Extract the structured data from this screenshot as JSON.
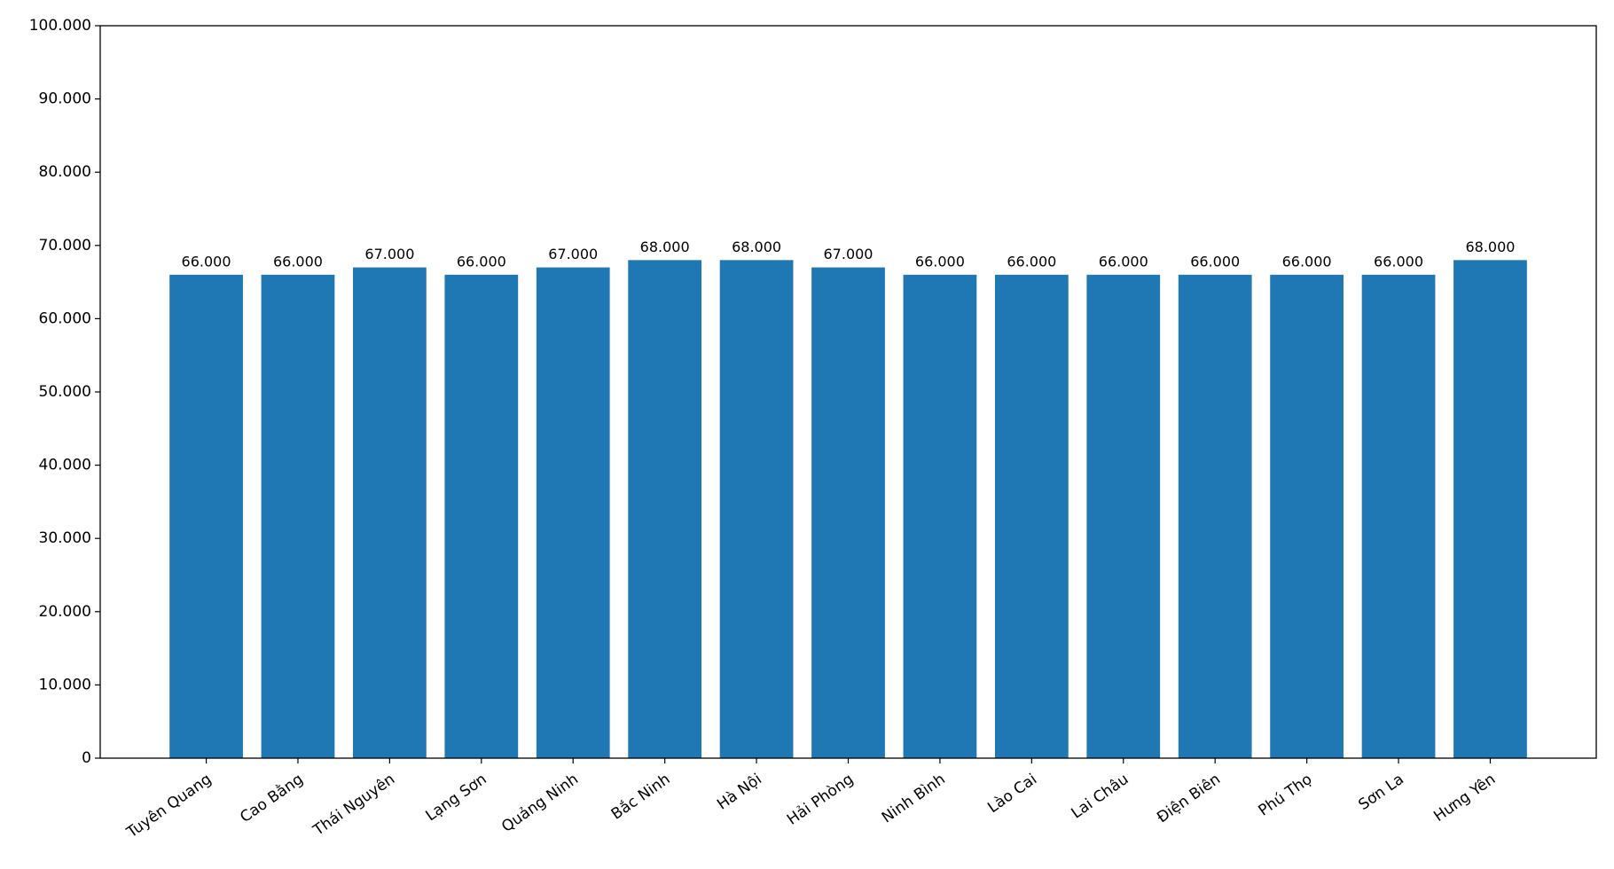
{
  "chart_data": {
    "type": "bar",
    "categories": [
      "Tuyên Quang",
      "Cao Bằng",
      "Thái Nguyên",
      "Lạng Sơn",
      "Quảng Ninh",
      "Bắc Ninh",
      "Hà Nội",
      "Hải Phòng",
      "Ninh Bình",
      "Lào Cai",
      "Lai Châu",
      "Điện Biên",
      "Phú Thọ",
      "Sơn La",
      "Hưng Yên"
    ],
    "values": [
      66000,
      66000,
      67000,
      66000,
      67000,
      68000,
      68000,
      67000,
      66000,
      66000,
      66000,
      66000,
      66000,
      66000,
      68000
    ],
    "value_labels": [
      "66.000",
      "66.000",
      "67.000",
      "66.000",
      "67.000",
      "68.000",
      "68.000",
      "67.000",
      "66.000",
      "66.000",
      "66.000",
      "66.000",
      "66.000",
      "66.000",
      "68.000"
    ],
    "color": "#1f77b4",
    "ylim": [
      0,
      100000
    ],
    "yticks": [
      0,
      {
        "value": 10000,
        "label": "10.000"
      },
      {
        "value": 20000,
        "label": "20.000"
      },
      {
        "value": 30000,
        "label": "30.000"
      },
      {
        "value": 40000,
        "label": "40.000"
      },
      {
        "value": 50000,
        "label": "50.000"
      },
      {
        "value": 60000,
        "label": "60.000"
      },
      {
        "value": 70000,
        "label": "70.000"
      },
      {
        "value": 80000,
        "label": "80.000"
      },
      {
        "value": 90000,
        "label": "90.000"
      },
      {
        "value": 100000,
        "label": "100.000"
      }
    ],
    "grid": false
  }
}
